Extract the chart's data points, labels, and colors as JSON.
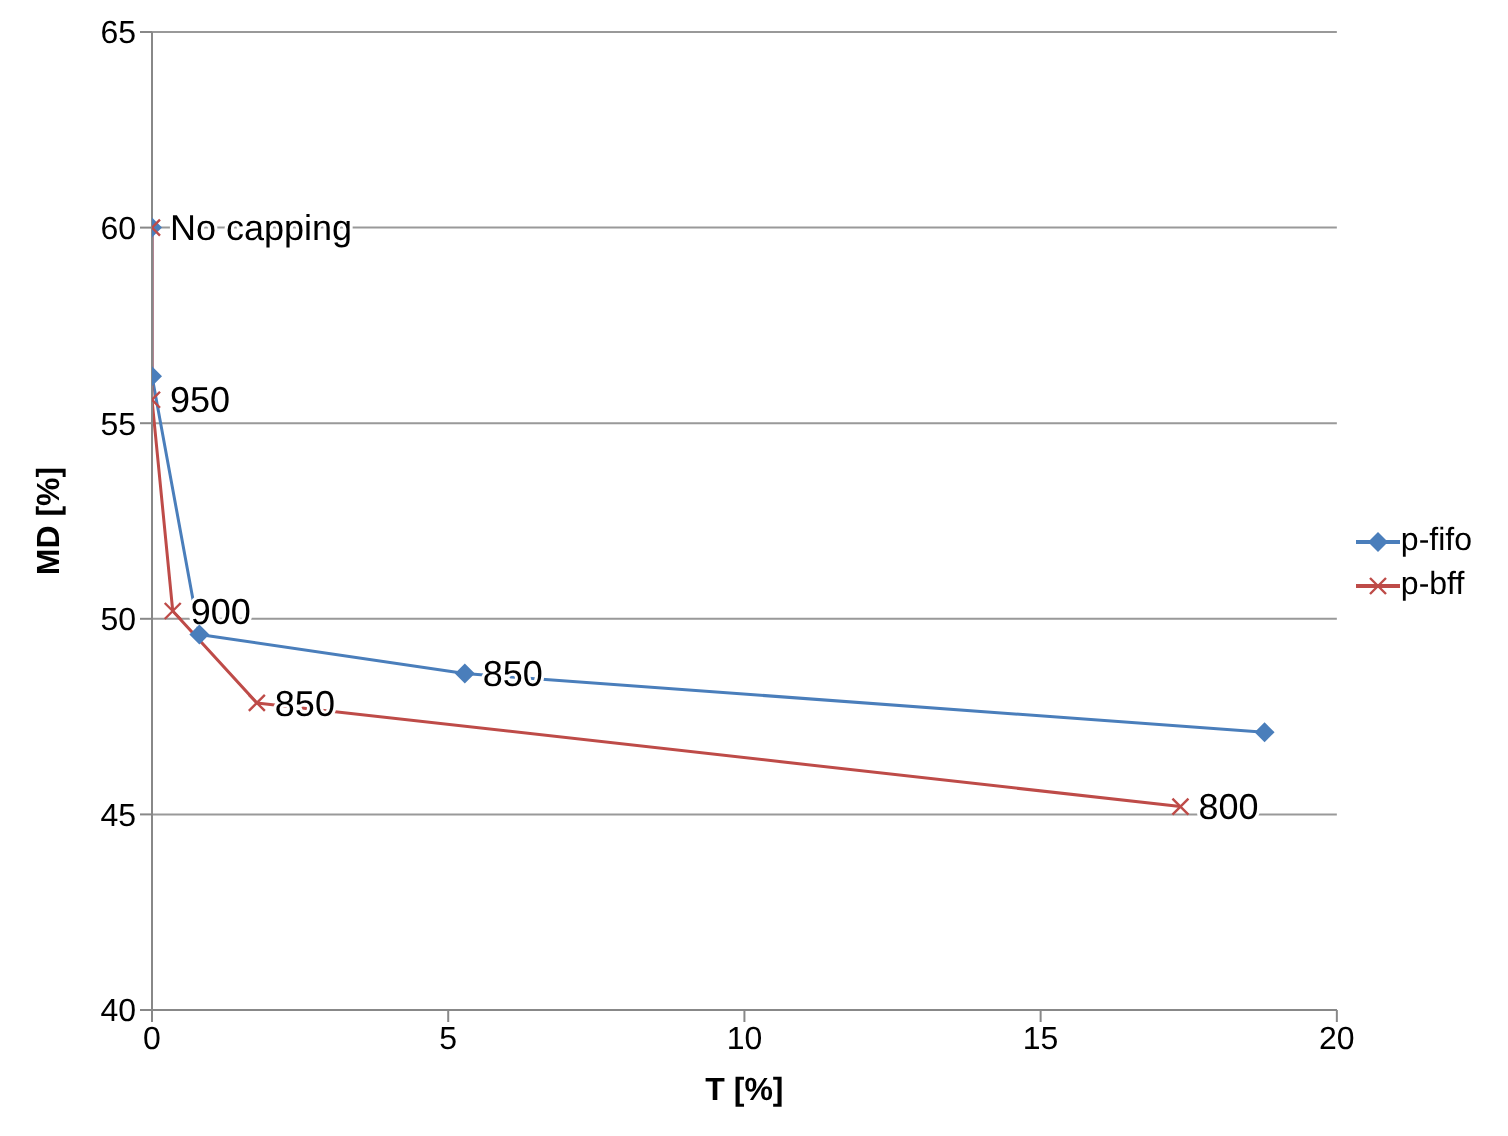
{
  "chart_data": {
    "type": "line",
    "xlabel": "T [%]",
    "ylabel": "MD [%]",
    "xlim": [
      0,
      20
    ],
    "xticks": [
      0,
      5,
      10,
      15,
      20
    ],
    "ylim": [
      40,
      65
    ],
    "yticks": [
      40,
      45,
      50,
      55,
      60,
      65
    ],
    "grid": "y",
    "legend": "right",
    "line_style": "solid",
    "series": [
      {
        "name": "p-fifo",
        "color": "#4a7ebb",
        "marker": "diamond",
        "x": [
          0,
          0,
          0.8,
          5.28,
          18.78
        ],
        "values": [
          60,
          56.2,
          49.6,
          48.6,
          47.1
        ]
      },
      {
        "name": "p-bff",
        "color": "#be4b48",
        "marker": "cross",
        "x": [
          0,
          0,
          0.35,
          1.77,
          17.36
        ],
        "values": [
          60,
          55.6,
          50.2,
          47.85,
          45.2
        ]
      }
    ],
    "annotations": [
      {
        "text": "No capping",
        "x": 0,
        "y": 60
      },
      {
        "text": "950",
        "x": 0,
        "y": 55.6
      },
      {
        "text": "900",
        "x": 0.35,
        "y": 50.2
      },
      {
        "text": "850",
        "x": 1.77,
        "y": 47.85
      },
      {
        "text": "850",
        "x": 5.28,
        "y": 48.6
      },
      {
        "text": "800",
        "x": 17.36,
        "y": 45.2
      }
    ]
  }
}
